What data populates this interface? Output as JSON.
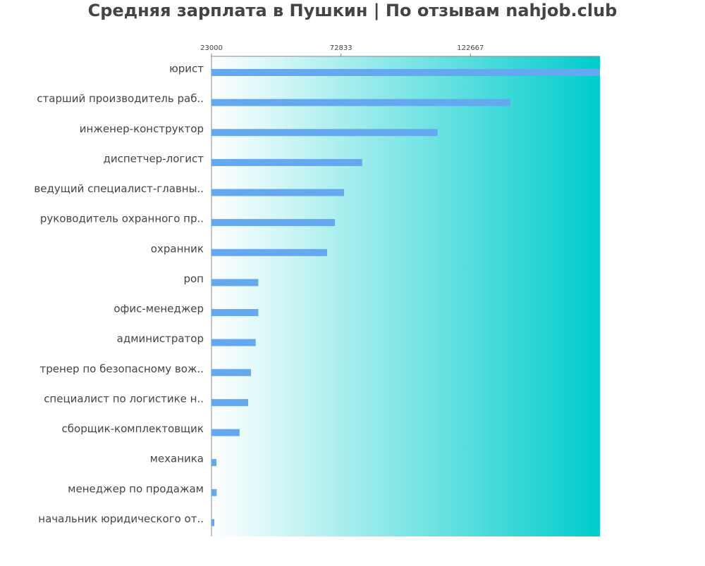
{
  "chart_data": {
    "type": "bar",
    "orientation": "horizontal",
    "title": "Средняя зарплата в Пушкин | По отзывам nahjob.club",
    "categories": [
      "юрист",
      "старший производитель раб..",
      "инженер-конструктор",
      "диспетчер-логист",
      "ведущий специалист-главны..",
      "руководитель охранного пр..",
      "охранник",
      "роп",
      "офис-менеджер",
      "администратор",
      "тренер по безопасному вож..",
      "специалист по логистике н..",
      "сборщик-комплектовщик",
      "механика",
      "менеджер по продажам",
      "начальник юридического от.."
    ],
    "values": [
      172500,
      138000,
      110000,
      81000,
      74000,
      70500,
      67500,
      41000,
      41000,
      40000,
      38200,
      37100,
      33800,
      24900,
      25000,
      24100
    ],
    "color": "#64a8f0",
    "xlim": [
      23000,
      172500
    ],
    "xticks": [
      23000,
      72833,
      122667
    ]
  }
}
